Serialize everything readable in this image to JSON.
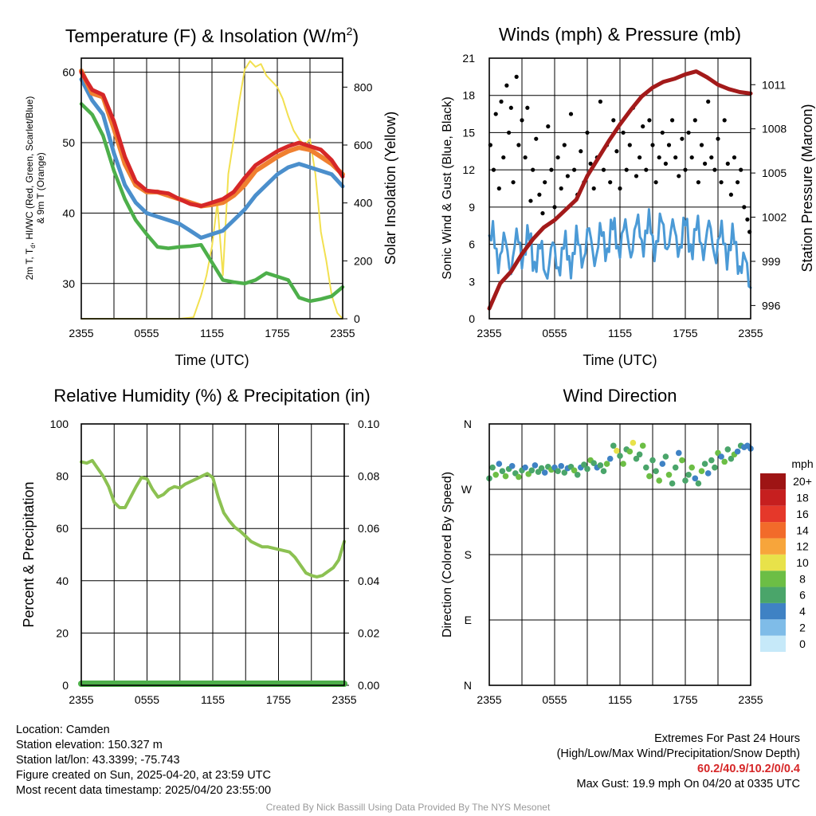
{
  "colors": {
    "temp_red": "#d62728",
    "dewpoint_green": "#4daf4a",
    "wc_blue": "#4b8fcc",
    "nine_m_orange": "#f08030",
    "solar_yellow": "#f2e050",
    "pressure_maroon": "#a31a1a",
    "gust_black": "#000000",
    "wind_blue": "#4b9ad6",
    "rh_green": "#8cc152",
    "precip_green": "#4daf4a"
  },
  "footer": {
    "location": "Location: Camden",
    "elevation": "Station elevation: 150.327 m",
    "latlon": "Station lat/lon: 43.3399; -75.743",
    "created": "Figure created on Sun, 2025-04-20, at 23:59 UTC",
    "recent": "Most recent data timestamp: 2025/04/20 23:55:00",
    "extremes_title": "Extremes For Past 24 Hours",
    "extremes_sub": "(High/Low/Max Wind/Precipitation/Snow Depth)",
    "extremes_values": "60.2/40.9/10.2/0/0.4",
    "max_gust": "Max Gust: 19.9 mph On 04/20 at 0335 UTC",
    "credit": "Created By Nick Bassill Using Data Provided By The NYS Mesonet"
  },
  "chart_data": [
    {
      "type": "line",
      "title": "Temperature (F) & Insolation (W/m²)",
      "xlabel": "Time (UTC)",
      "ylabel": "2m T, T_d, HI/WC (Red, Green, Scarlet/Blue) & 9m T (Orange)",
      "ylabel_line1": "2m T, T",
      "ylabel_sub": "d",
      "ylabel_line1_rest": ", HI/WC (Red, Green, Scarlet/Blue)",
      "ylabel_line2": "& 9m T (Orange)",
      "y2label": "Solar Insolation (Yellow)",
      "xticks": [
        "2355",
        "0555",
        "1155",
        "1755",
        "2355"
      ],
      "ylim": [
        25,
        62
      ],
      "yticks": [
        30,
        40,
        50,
        60
      ],
      "y2lim": [
        0,
        900
      ],
      "y2ticks": [
        0,
        200,
        400,
        600,
        800
      ],
      "grid": true,
      "series": [
        {
          "key": "nine_m",
          "axis": "left",
          "x": [
            0,
            1,
            2,
            3,
            4,
            5,
            6,
            7,
            8,
            9,
            10,
            11,
            12,
            13,
            14,
            15,
            16,
            17,
            18,
            19,
            20,
            21,
            22,
            23,
            24
          ],
          "y": [
            60.2,
            57,
            56.5,
            52,
            47,
            44,
            43,
            43,
            42.5,
            42,
            41.5,
            41,
            41.2,
            41.5,
            42.5,
            44,
            46,
            47,
            48,
            48.8,
            49.3,
            49,
            48,
            47,
            45.5
          ]
        },
        {
          "key": "temp",
          "axis": "left",
          "x": [
            0,
            1,
            2,
            3,
            4,
            5,
            6,
            7,
            8,
            9,
            10,
            11,
            12,
            13,
            14,
            15,
            16,
            17,
            18,
            19,
            20,
            21,
            22,
            23,
            24
          ],
          "y": [
            60,
            57.5,
            56.8,
            53,
            48,
            44.5,
            43.2,
            43,
            42.8,
            42,
            41.3,
            41,
            41.5,
            42,
            43,
            45,
            46.8,
            47.8,
            48.8,
            49.5,
            50,
            49.5,
            49,
            47.5,
            45.2
          ]
        },
        {
          "key": "wc",
          "axis": "left",
          "x": [
            0,
            1,
            2,
            3,
            4,
            5,
            6,
            7,
            8,
            9,
            10,
            11,
            12,
            13,
            14,
            15,
            16,
            17,
            18,
            19,
            20,
            21,
            22,
            23,
            24
          ],
          "y": [
            59,
            56,
            54,
            48.5,
            44,
            41.5,
            40,
            39.5,
            39,
            38.5,
            37.5,
            36.5,
            37,
            37.5,
            39,
            40.5,
            42.5,
            44,
            45.5,
            46.5,
            47,
            46.5,
            46,
            45.5,
            43.8
          ]
        },
        {
          "key": "dewpoint",
          "axis": "left",
          "x": [
            0,
            1,
            2,
            3,
            4,
            5,
            6,
            7,
            8,
            9,
            10,
            11,
            12,
            13,
            14,
            15,
            16,
            17,
            18,
            19,
            20,
            21,
            22,
            23,
            24
          ],
          "y": [
            55.5,
            54,
            51,
            46,
            42,
            39,
            37,
            35.2,
            35,
            35.2,
            35.3,
            35.5,
            33,
            30.5,
            30.2,
            30,
            30.5,
            31.5,
            31,
            30.5,
            28,
            27.5,
            27.8,
            28.2,
            29.5
          ]
        },
        {
          "key": "solar",
          "axis": "right",
          "x": [
            0,
            9,
            10.3,
            11,
            11.5,
            12,
            12.5,
            13,
            13.5,
            14,
            14.5,
            15,
            15.5,
            16,
            16.5,
            17,
            17.5,
            18,
            18.5,
            19,
            19.5,
            20,
            20.5,
            21,
            21.5,
            22,
            22.5,
            23,
            23.5,
            24
          ],
          "y": [
            0,
            0,
            5,
            80,
            150,
            250,
            400,
            150,
            500,
            620,
            750,
            860,
            890,
            870,
            880,
            840,
            820,
            800,
            760,
            700,
            650,
            620,
            600,
            620,
            500,
            300,
            200,
            80,
            20,
            0
          ]
        }
      ]
    },
    {
      "type": "line",
      "title": "Winds (mph) & Pressure (mb)",
      "xlabel": "Time (UTC)",
      "ylabel": "Sonic Wind & Gust (Blue, Black)",
      "y2label": "Station Pressure (Maroon)",
      "xticks": [
        "2355",
        "0555",
        "1155",
        "1755",
        "2355"
      ],
      "ylim": [
        0,
        21
      ],
      "yticks": [
        0,
        3,
        6,
        9,
        12,
        15,
        18,
        21
      ],
      "y2lim": [
        995.1,
        1012.8
      ],
      "y2ticks": [
        996,
        999,
        1002,
        1005,
        1008,
        1011
      ],
      "grid": true,
      "series": [
        {
          "key": "pressure",
          "axis": "right",
          "x": [
            0,
            1,
            2,
            3,
            4,
            5,
            6,
            7,
            8,
            9,
            10,
            11,
            12,
            13,
            14,
            15,
            16,
            17,
            18,
            19,
            20,
            21,
            22,
            23,
            24
          ],
          "y": [
            995.8,
            997.5,
            998.3,
            999.5,
            1000.5,
            1001.3,
            1001.8,
            1002.5,
            1003.2,
            1004.8,
            1006.0,
            1007.2,
            1008.3,
            1009.3,
            1010.2,
            1010.8,
            1011.2,
            1011.4,
            1011.7,
            1011.9,
            1011.5,
            1011.0,
            1010.7,
            1010.5,
            1010.4
          ]
        },
        {
          "key": "wind",
          "axis": "left",
          "x": [
            0,
            1,
            2,
            3,
            4,
            5,
            6,
            7,
            8,
            9,
            10,
            11,
            12,
            13,
            14,
            15,
            16,
            17,
            18,
            19,
            20,
            21,
            22,
            23,
            24
          ],
          "y": [
            6,
            5.5,
            5,
            6,
            5.5,
            4.5,
            5,
            5.2,
            5.5,
            6,
            5.8,
            6.5,
            6.5,
            6.3,
            7,
            6.6,
            7,
            6.5,
            6.8,
            6.5,
            6.5,
            6,
            6,
            5,
            2.5
          ]
        },
        {
          "key": "gust",
          "axis": "left",
          "type": "scatter",
          "x": [
            0.1,
            0.4,
            0.6,
            0.9,
            1.1,
            1.3,
            1.6,
            1.8,
            2.0,
            2.2,
            2.5,
            2.7,
            3.0,
            3.3,
            3.5,
            3.8,
            4.0,
            4.3,
            4.6,
            4.9,
            5.1,
            5.4,
            5.7,
            6.0,
            6.3,
            6.6,
            6.9,
            7.2,
            7.5,
            7.8,
            8.1,
            8.4,
            8.7,
            9.0,
            9.3,
            9.6,
            9.9,
            10.2,
            10.5,
            10.8,
            11.1,
            11.4,
            11.7,
            12.0,
            12.3,
            12.6,
            12.9,
            13.2,
            13.5,
            13.8,
            14.1,
            14.4,
            14.7,
            15.0,
            15.3,
            15.6,
            15.9,
            16.2,
            16.5,
            16.8,
            17.1,
            17.4,
            17.7,
            18.0,
            18.3,
            18.6,
            18.9,
            19.2,
            19.5,
            19.8,
            20.1,
            20.4,
            20.7,
            21.0,
            21.3,
            21.6,
            21.9,
            22.2,
            22.5,
            22.8,
            23.1,
            23.4,
            23.7,
            23.9
          ],
          "y": [
            14,
            12,
            16.5,
            10.5,
            17.5,
            13,
            18.8,
            15,
            17,
            11,
            19.5,
            14,
            16,
            13,
            17,
            9.5,
            12,
            14.5,
            10,
            8.5,
            11,
            15.5,
            12,
            9,
            13,
            10.5,
            14,
            11.5,
            16.5,
            12,
            10,
            13.5,
            11,
            15,
            12.5,
            10.5,
            13,
            17.5,
            12,
            14,
            11,
            16,
            13.5,
            10.5,
            15,
            12,
            14,
            17,
            11.5,
            13,
            15.5,
            12,
            16,
            14,
            11,
            13,
            15,
            12.5,
            14,
            16,
            13,
            11.5,
            14.5,
            12,
            15,
            13,
            16,
            11,
            14,
            12.5,
            17.5,
            13,
            12,
            14.5,
            11,
            16,
            12.5,
            10,
            13,
            11,
            12,
            9,
            8,
            7
          ]
        }
      ]
    },
    {
      "type": "line",
      "title": "Relative Humidity (%) & Precipitation (in)",
      "xlabel": "",
      "ylabel": "Percent & Precipitation",
      "xticks": [
        "2355",
        "0555",
        "1155",
        "1755",
        "2355"
      ],
      "ylim": [
        0,
        100
      ],
      "yticks": [
        0,
        20,
        40,
        60,
        80,
        100
      ],
      "y2lim": [
        0,
        0.1
      ],
      "y2ticks": [
        "0.00",
        "0.02",
        "0.04",
        "0.06",
        "0.08",
        "0.10"
      ],
      "grid": true,
      "series": [
        {
          "key": "rh",
          "axis": "left",
          "x": [
            0,
            0.5,
            1,
            1.5,
            2,
            2.5,
            3,
            3.5,
            4,
            4.5,
            5,
            5.5,
            6,
            6.5,
            7,
            7.5,
            8,
            8.5,
            9,
            9.5,
            10,
            10.5,
            11,
            11.5,
            12,
            12.5,
            13,
            13.5,
            14,
            14.5,
            15,
            15.5,
            16,
            16.5,
            17,
            17.5,
            18,
            18.5,
            19,
            19.5,
            20,
            20.5,
            21,
            21.5,
            22,
            22.5,
            23,
            23.5,
            24
          ],
          "y": [
            85.5,
            85,
            86,
            83,
            80,
            76,
            70,
            68,
            68,
            72,
            76,
            79.5,
            79,
            75,
            72,
            73,
            75,
            76,
            75.5,
            77,
            78,
            79,
            80,
            81,
            79.5,
            72,
            66,
            63,
            60.5,
            59,
            57,
            55,
            54,
            53,
            53,
            52.5,
            52,
            51.5,
            51,
            49,
            46,
            43,
            42,
            41.5,
            42,
            43.5,
            45,
            48,
            55
          ]
        },
        {
          "key": "precip",
          "axis": "right",
          "x": [
            0,
            24
          ],
          "y": [
            0,
            0
          ]
        }
      ]
    },
    {
      "type": "scatter",
      "title": "Wind Direction",
      "xlabel": "",
      "ylabel": "Direction (Colored By Speed)",
      "xticks": [
        "2355",
        "0555",
        "1155",
        "1755",
        "2355"
      ],
      "yticks": [
        "N",
        "E",
        "S",
        "W",
        "N"
      ],
      "ylim": [
        0,
        360
      ],
      "colorbar_title": "mph",
      "colorbar_labels": [
        "0",
        "2",
        "4",
        "6",
        "8",
        "10",
        "12",
        "14",
        "16",
        "18",
        "20+"
      ],
      "colorbar_colors": [
        "#c6e9f9",
        "#7fbce8",
        "#3f82c4",
        "#4aa56a",
        "#6cbe45",
        "#e8e24a",
        "#f7a53b",
        "#f26b2a",
        "#e5382a",
        "#c61f1f",
        "#9e1414"
      ],
      "x": [
        0,
        0.3,
        0.6,
        0.9,
        1.2,
        1.5,
        1.8,
        2.1,
        2.4,
        2.7,
        3.0,
        3.3,
        3.6,
        3.9,
        4.2,
        4.5,
        4.8,
        5.1,
        5.4,
        5.7,
        6.0,
        6.3,
        6.6,
        6.9,
        7.2,
        7.5,
        7.8,
        8.1,
        8.4,
        8.7,
        9.0,
        9.3,
        9.6,
        9.9,
        10.2,
        10.5,
        10.8,
        11.1,
        11.4,
        11.7,
        12.0,
        12.3,
        12.6,
        12.9,
        13.2,
        13.5,
        13.8,
        14.1,
        14.4,
        14.7,
        15.0,
        15.3,
        15.6,
        15.9,
        16.2,
        16.5,
        16.8,
        17.1,
        17.4,
        17.7,
        18.0,
        18.3,
        18.6,
        18.9,
        19.2,
        19.5,
        19.8,
        20.1,
        20.4,
        20.7,
        21.0,
        21.3,
        21.6,
        21.9,
        22.2,
        22.5,
        22.8,
        23.1,
        23.4,
        23.7,
        24.0
      ],
      "y": [
        285,
        300,
        290,
        305,
        295,
        288,
        298,
        302,
        292,
        287,
        296,
        300,
        291,
        296,
        303,
        294,
        299,
        293,
        301,
        297,
        300,
        295,
        302,
        293,
        299,
        301,
        296,
        290,
        300,
        304,
        298,
        310,
        306,
        300,
        303,
        295,
        305,
        312,
        330,
        323,
        316,
        305,
        325,
        322,
        334,
        312,
        318,
        330,
        300,
        288,
        310,
        295,
        282,
        305,
        315,
        290,
        278,
        300,
        320,
        310,
        282,
        290,
        300,
        285,
        278,
        295,
        305,
        292,
        310,
        300,
        320,
        315,
        308,
        325,
        312,
        318,
        322,
        330,
        328,
        330,
        326
      ],
      "speed": [
        6,
        5,
        7,
        4,
        6,
        8,
        5,
        4,
        6,
        7,
        5,
        4,
        8,
        5,
        3,
        6,
        5,
        4,
        6,
        7,
        4,
        5,
        4,
        6,
        4,
        5,
        8,
        6,
        4,
        5,
        6,
        7,
        5,
        4,
        6,
        5,
        7,
        4,
        6,
        9,
        5,
        8,
        6,
        7,
        10,
        6,
        5,
        8,
        6,
        7,
        5,
        6,
        8,
        4,
        6,
        7,
        5,
        6,
        4,
        7,
        6,
        5,
        8,
        4,
        6,
        7,
        5,
        4,
        6,
        5,
        7,
        4,
        8,
        6,
        5,
        7,
        4,
        5,
        4,
        4,
        4
      ]
    }
  ]
}
